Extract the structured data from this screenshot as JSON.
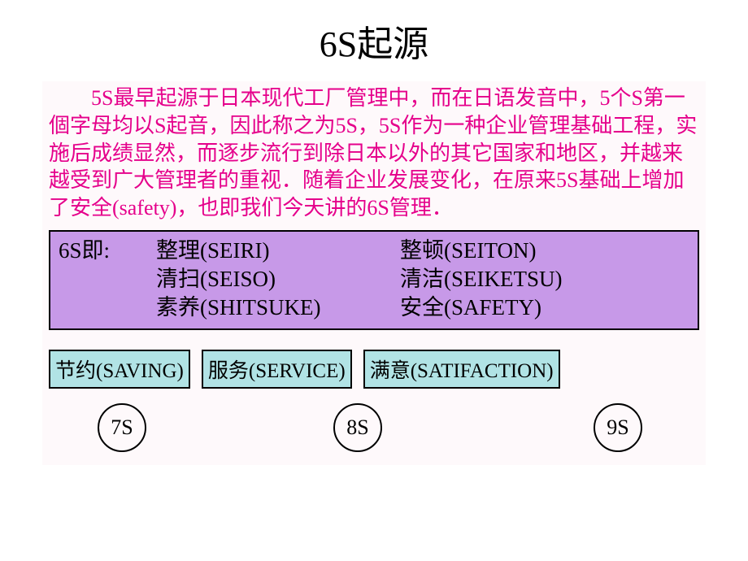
{
  "title": "6S起源",
  "body_text": "5S最早起源于日本现代工厂管理中，而在日语发音中，5个S第一個字母均以S起音，因此称之为5S，5S作为一种企业管理基础工程，实施后成绩显然，而逐步流行到除日本以外的其它国家和地区，并越来越受到广大管理者的重视．随着企业发展变化，在原来5S基础上增加了安全(safety)，也即我们今天讲的6S管理．",
  "colors": {
    "text_magenta": "#e5008b",
    "purple_box_bg": "#c799e8",
    "teal_box_bg": "#b1e3e5",
    "border": "#000000",
    "panel_bg": "#fef9fb",
    "title_color": "#000000"
  },
  "typography": {
    "title_fontsize": 44,
    "body_fontsize": 26,
    "box_fontsize": 27,
    "ext_fontsize": 25,
    "circle_fontsize": 26,
    "font_family": "SimSun"
  },
  "six_s_box": {
    "label": "6S即:",
    "items": [
      {
        "col1": "整理(SEIRI)",
        "col2": "整顿(SEITON)"
      },
      {
        "col1": "清扫(SEISO)",
        "col2": "清洁(SEIKETSU)"
      },
      {
        "col1": "素养(SHITSUKE)",
        "col2": "安全(SAFETY)"
      }
    ]
  },
  "extensions": [
    "节约(SAVING)",
    "服务(SERVICE)",
    "满意(SATIFACTION)"
  ],
  "circles": [
    "7S",
    "8S",
    "9S"
  ]
}
